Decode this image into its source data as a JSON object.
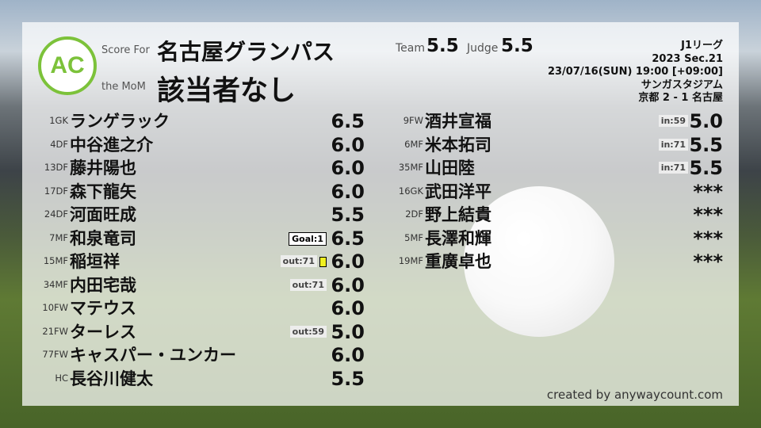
{
  "logo": {
    "text": "AC",
    "ring_top": "ANYWAY",
    "ring_bottom": "COUNT",
    "color": "#7cc23a"
  },
  "header": {
    "score_for_label": "Score For",
    "team": "名古屋グランパス",
    "mom_label": "the MoM",
    "mom": "該当者なし",
    "team_label": "Team",
    "team_score": "5.5",
    "judge_label": "Judge",
    "judge_score": "5.5"
  },
  "match": {
    "league": "J1リーグ",
    "section": "2023 Sec.21",
    "datetime": "23/07/16(SUN) 19:00 [+09:00]",
    "venue": "サンガスタジアム",
    "result": "京都 2 - 1 名古屋"
  },
  "left_players": [
    {
      "pos": "1GK",
      "name": "ランゲラック",
      "rating": "6.5"
    },
    {
      "pos": "4DF",
      "name": "中谷進之介",
      "rating": "6.0"
    },
    {
      "pos": "13DF",
      "name": "藤井陽也",
      "rating": "6.0"
    },
    {
      "pos": "17DF",
      "name": "森下龍矢",
      "rating": "6.0"
    },
    {
      "pos": "24DF",
      "name": "河面旺成",
      "rating": "5.5"
    },
    {
      "pos": "7MF",
      "name": "和泉竜司",
      "rating": "6.5",
      "tag": "Goal:1"
    },
    {
      "pos": "15MF",
      "name": "稲垣祥",
      "rating": "6.0",
      "tag": "out:71",
      "yellow_card": true
    },
    {
      "pos": "34MF",
      "name": "内田宅哉",
      "rating": "6.0",
      "tag": "out:71"
    },
    {
      "pos": "10FW",
      "name": "マテウス",
      "rating": "6.0"
    },
    {
      "pos": "21FW",
      "name": "ターレス",
      "rating": "5.0",
      "tag": "out:59"
    },
    {
      "pos": "77FW",
      "name": "キャスパー・ユンカー",
      "rating": "6.0"
    },
    {
      "pos": "HC",
      "name": "長谷川健太",
      "rating": "5.5"
    }
  ],
  "right_players": [
    {
      "pos": "9FW",
      "name": "酒井宣福",
      "rating": "5.0",
      "tag": "in:59"
    },
    {
      "pos": "6MF",
      "name": "米本拓司",
      "rating": "5.5",
      "tag": "in:71"
    },
    {
      "pos": "35MF",
      "name": "山田陸",
      "rating": "5.5",
      "tag": "in:71"
    },
    {
      "pos": "16GK",
      "name": "武田洋平",
      "rating": "***"
    },
    {
      "pos": "2DF",
      "name": "野上結貴",
      "rating": "***"
    },
    {
      "pos": "5MF",
      "name": "長澤和輝",
      "rating": "***"
    },
    {
      "pos": "19MF",
      "name": "重廣卓也",
      "rating": "***"
    }
  ],
  "footer": {
    "credit": "created by anywaycount.com"
  }
}
